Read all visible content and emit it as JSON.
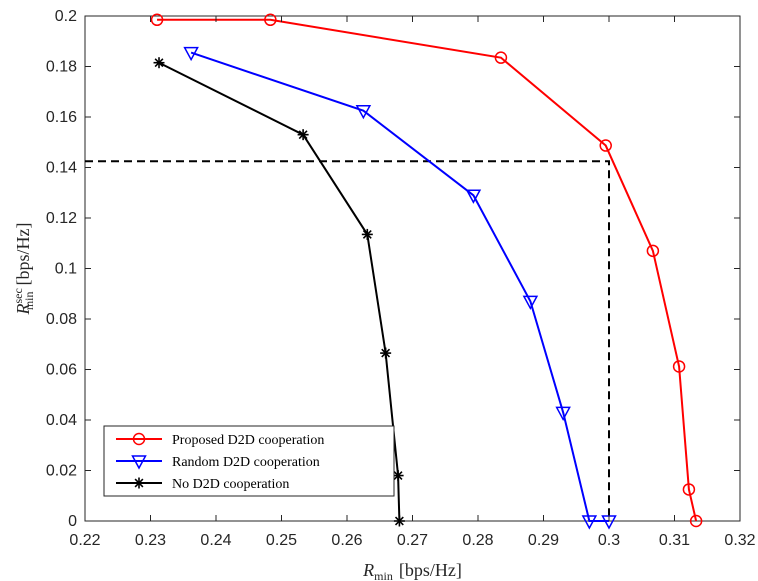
{
  "chart_data": {
    "type": "line",
    "xlabel": {
      "main": "R",
      "sub": "min",
      "unit": "[bps/Hz]"
    },
    "ylabel": {
      "main": "R",
      "sup": "sec",
      "sub": "min",
      "unit": "[bps/Hz]"
    },
    "xlim": [
      0.22,
      0.32
    ],
    "ylim": [
      0,
      0.2
    ],
    "xticks": [
      "0.22",
      "0.23",
      "0.24",
      "0.25",
      "0.26",
      "0.27",
      "0.28",
      "0.29",
      "0.3",
      "0.31",
      "0.32"
    ],
    "yticks": [
      "0",
      "0.02",
      "0.04",
      "0.06",
      "0.08",
      "0.1",
      "0.12",
      "0.14",
      "0.16",
      "0.18",
      "0.2"
    ],
    "grid": false,
    "legend_position": "bottom-left",
    "series": [
      {
        "name": "Proposed D2D cooperation",
        "color": "#ff0000",
        "marker": "circle",
        "x": [
          0.231,
          0.2483,
          0.2835,
          0.2995,
          0.3067,
          0.3107,
          0.3122,
          0.3133
        ],
        "y": [
          0.1985,
          0.1985,
          0.1835,
          0.1487,
          0.107,
          0.0612,
          0.0125,
          0.0
        ]
      },
      {
        "name": "Random D2D cooperation",
        "color": "#0000ff",
        "marker": "triangle-down",
        "x": [
          0.2362,
          0.2625,
          0.2793,
          0.288,
          0.293,
          0.297,
          0.3
        ],
        "y": [
          0.1855,
          0.1625,
          0.129,
          0.087,
          0.043,
          0.0,
          0.0
        ]
      },
      {
        "name": "No D2D cooperation",
        "color": "#000000",
        "marker": "star",
        "x": [
          0.2313,
          0.2533,
          0.2631,
          0.2659,
          0.2678,
          0.268
        ],
        "y": [
          0.1815,
          0.153,
          0.1135,
          0.0665,
          0.018,
          0.0
        ]
      }
    ],
    "reference_line": {
      "style": "dashed",
      "color": "#000000",
      "x": [
        0.22,
        0.3,
        0.3
      ],
      "y": [
        0.1425,
        0.1425,
        0.0
      ]
    }
  }
}
